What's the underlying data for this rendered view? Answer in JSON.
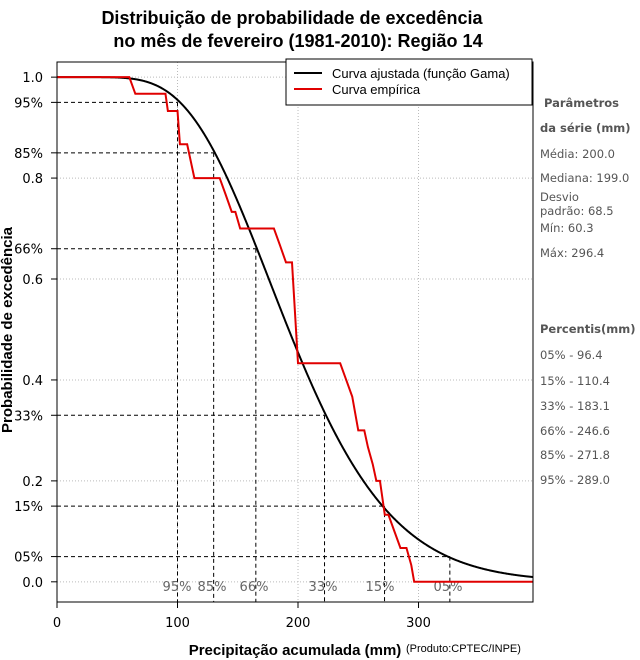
{
  "chart_data": {
    "type": "line",
    "title_line1": "Distribuição de probabilidade de excedência",
    "title_line2": "no mês de fevereiro (1981-2010): Região 14",
    "xlabel": "Precipitação acumulada (mm)",
    "ylabel": "Probabilidade de excedência",
    "credit": "(Produto:CPTEC/INPE)",
    "xlim": [
      0,
      395
    ],
    "ylim": [
      -0.04,
      1.03
    ],
    "x_ticks": [
      "0",
      "100",
      "200",
      "300"
    ],
    "y_ticks": [
      "0.0",
      "0.2",
      "0.4",
      "0.6",
      "0.8",
      "1.0"
    ],
    "y_extra_ticks": [
      "05%",
      "15%",
      "33%",
      "66%",
      "85%",
      "95%"
    ],
    "legend": {
      "position": "top-right",
      "items": [
        {
          "label": "Curva ajustada (função Gama)",
          "color": "#000000"
        },
        {
          "label": "Curva empírica",
          "color": "#e00000"
        }
      ]
    },
    "gamma": {
      "mean": 200.0,
      "sd": 68.5
    },
    "empirical": {
      "x": [
        0,
        60,
        65,
        90,
        92,
        100,
        102,
        108,
        114,
        135,
        140,
        145,
        148,
        152,
        158,
        180,
        185,
        190,
        195,
        200,
        203,
        205,
        235,
        240,
        245,
        250,
        255,
        258,
        262,
        265,
        268,
        272,
        275,
        280,
        285,
        290,
        294,
        296.4,
        300,
        395
      ],
      "y": [
        1.0,
        1.0,
        0.967,
        0.967,
        0.933,
        0.933,
        0.867,
        0.867,
        0.8,
        0.8,
        0.767,
        0.733,
        0.733,
        0.7,
        0.7,
        0.7,
        0.667,
        0.633,
        0.633,
        0.433,
        0.433,
        0.433,
        0.433,
        0.4,
        0.367,
        0.3,
        0.3,
        0.267,
        0.233,
        0.2,
        0.2,
        0.133,
        0.133,
        0.1,
        0.067,
        0.067,
        0.033,
        0.0,
        0.0,
        0.0
      ]
    },
    "percentile_guides": [
      {
        "label": "05%",
        "prob": 0.05,
        "x": 326
      },
      {
        "label": "15%",
        "prob": 0.15,
        "x": 271.8
      },
      {
        "label": "33%",
        "prob": 0.33,
        "x": 222
      },
      {
        "label": "66%",
        "prob": 0.66,
        "x": 165
      },
      {
        "label": "85%",
        "prob": 0.85,
        "x": 130
      },
      {
        "label": "95%",
        "prob": 0.95,
        "x": 100
      }
    ],
    "percentile_guide_labels": [
      "05%",
      "15%",
      "33%",
      "66%",
      "85%",
      "95%"
    ],
    "grid": true
  },
  "side_panel": {
    "params_title_1": "Parâmetros",
    "params_title_2": "da série (mm)",
    "media": "Média: 200.0",
    "mediana": "Mediana: 199.0",
    "desvio_1": "Desvio",
    "desvio_2": "padrão: 68.5",
    "min": "Mín: 60.3",
    "max": "Máx: 296.4",
    "percentis_title": "Percentis(mm)",
    "percentis": [
      "05% - 96.4",
      "15% - 110.4",
      "33% - 183.1",
      "66% - 246.6",
      "85% - 271.8",
      "95% - 289.0"
    ]
  }
}
